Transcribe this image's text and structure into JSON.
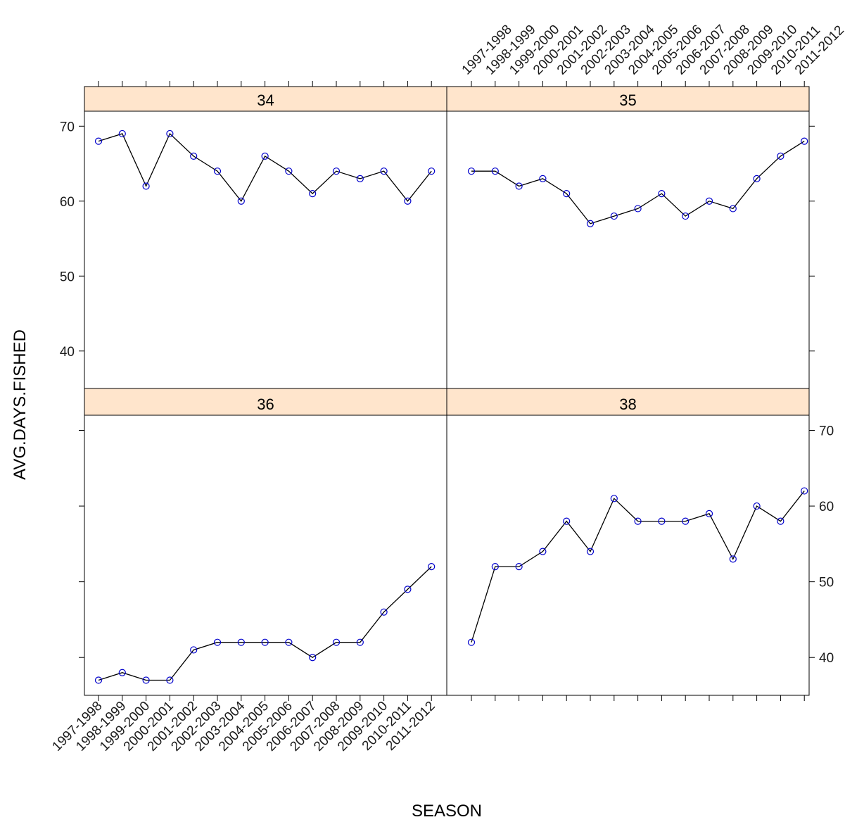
{
  "chart_data": {
    "type": "line",
    "layout": "lattice 2x2 multi-panel",
    "xlabel": "SEASON",
    "ylabel": "AVG.DAYS.FISHED",
    "ylim": [
      35,
      72
    ],
    "y_ticks": [
      40,
      50,
      60,
      70
    ],
    "categories": [
      "1997-1998",
      "1998-1999",
      "1999-2000",
      "2000-2001",
      "2001-2002",
      "2002-2003",
      "2003-2004",
      "2004-2005",
      "2005-2006",
      "2006-2007",
      "2007-2008",
      "2008-2009",
      "2009-2010",
      "2010-2011",
      "2011-2012"
    ],
    "strip_color": "#ffe5cc",
    "line_color": "#000000",
    "point_color": "#0000cc",
    "panels": [
      {
        "label": "34",
        "values": [
          68,
          69,
          62,
          69,
          66,
          64,
          60,
          66,
          64,
          61,
          64,
          63,
          64,
          60,
          64
        ]
      },
      {
        "label": "35",
        "values": [
          64,
          64,
          62,
          63,
          61,
          57,
          58,
          59,
          61,
          58,
          60,
          59,
          63,
          66,
          68
        ]
      },
      {
        "label": "36",
        "values": [
          37,
          38,
          37,
          37,
          41,
          42,
          42,
          42,
          42,
          40,
          42,
          42,
          46,
          49,
          52
        ]
      },
      {
        "label": "38",
        "values": [
          42,
          52,
          52,
          54,
          58,
          54,
          61,
          58,
          58,
          58,
          59,
          53,
          60,
          58,
          62
        ]
      }
    ]
  }
}
